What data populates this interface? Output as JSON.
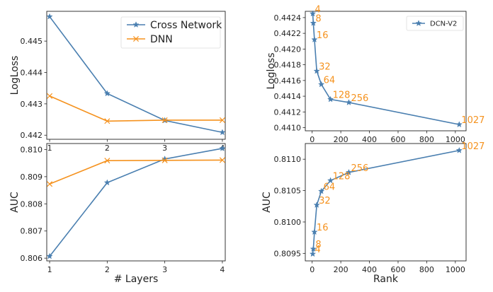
{
  "colors": {
    "blue": "#4a7fb0",
    "orange": "#f5921e"
  },
  "chart_data": [
    {
      "id": "tl",
      "type": "line",
      "x": [
        1,
        2,
        3,
        4
      ],
      "xticks": [
        "1",
        "2",
        "3",
        "4"
      ],
      "xlim": [
        0.95,
        4.05
      ],
      "ylabel": "LogLoss",
      "xlabel": "",
      "ylim": [
        0.44187,
        0.44595
      ],
      "yticks": [
        0.442,
        0.443,
        0.444,
        0.445
      ],
      "ytick_labels": [
        "0.442",
        "0.443",
        "0.444",
        "0.445"
      ],
      "legend": "top-right",
      "series": [
        {
          "name": "Cross Network",
          "color": "blue",
          "marker": "star",
          "values": [
            0.44578,
            0.44333,
            0.44247,
            0.44209
          ]
        },
        {
          "name": "DNN",
          "color": "orange",
          "marker": "x",
          "values": [
            0.44325,
            0.44245,
            0.44248,
            0.44248
          ]
        }
      ]
    },
    {
      "id": "bl",
      "type": "line",
      "x": [
        1,
        2,
        3,
        4
      ],
      "xticks": [
        "1",
        "2",
        "3",
        "4"
      ],
      "xlim": [
        0.95,
        4.05
      ],
      "ylabel": "AUC",
      "xlabel": "# Layers",
      "ylim": [
        0.8059,
        0.81022
      ],
      "yticks": [
        0.806,
        0.807,
        0.808,
        0.809,
        0.81
      ],
      "ytick_labels": [
        "0.806",
        "0.807",
        "0.808",
        "0.809",
        "0.810"
      ],
      "series": [
        {
          "name": "Cross Network",
          "color": "blue",
          "marker": "star",
          "values": [
            0.80607,
            0.80878,
            0.80965,
            0.81004
          ]
        },
        {
          "name": "DNN",
          "color": "orange",
          "marker": "x",
          "values": [
            0.80873,
            0.80959,
            0.8096,
            0.80961
          ]
        }
      ]
    },
    {
      "id": "tr",
      "type": "line",
      "x": [
        4,
        8,
        16,
        32,
        64,
        128,
        256,
        1027
      ],
      "xticks": [
        "0",
        "200",
        "400",
        "600",
        "800",
        "1000"
      ],
      "xtick_values": [
        0,
        200,
        400,
        600,
        800,
        1000
      ],
      "xlim": [
        -48,
        1075
      ],
      "ylabel": "Logloss",
      "xlabel": "",
      "ylim": [
        0.44096,
        0.44248
      ],
      "yticks": [
        0.441,
        0.4412,
        0.4414,
        0.4416,
        0.4418,
        0.442,
        0.4422,
        0.4424
      ],
      "ytick_labels": [
        "0.4410",
        "0.4412",
        "0.4414",
        "0.4416",
        "0.4418",
        "0.4420",
        "0.4422",
        "0.4424"
      ],
      "legend": "top-right",
      "point_labels": [
        "4",
        "8",
        "16",
        "32",
        "64",
        "128",
        "256",
        "1027"
      ],
      "series": [
        {
          "name": "DCN-V2",
          "color": "blue",
          "marker": "star",
          "values": [
            0.44245,
            0.44233,
            0.44212,
            0.44172,
            0.44155,
            0.44136,
            0.44132,
            0.44104
          ]
        }
      ]
    },
    {
      "id": "br",
      "type": "line",
      "x": [
        4,
        8,
        16,
        32,
        64,
        128,
        256,
        1027
      ],
      "xticks": [
        "0",
        "200",
        "400",
        "600",
        "800",
        "1000"
      ],
      "xtick_values": [
        0,
        200,
        400,
        600,
        800,
        1000
      ],
      "xlim": [
        -48,
        1075
      ],
      "ylabel": "AUC",
      "xlabel": "Rank",
      "ylim": [
        0.80938,
        0.81125
      ],
      "yticks": [
        0.8095,
        0.81,
        0.8105,
        0.811
      ],
      "ytick_labels": [
        "0.8095",
        "0.8100",
        "0.8105",
        "0.8110"
      ],
      "point_labels": [
        "4",
        "8",
        "16",
        "32",
        "64",
        "128",
        "256",
        "1027"
      ],
      "series": [
        {
          "name": "DCN-V2",
          "color": "blue",
          "marker": "star",
          "values": [
            0.80949,
            0.80957,
            0.80984,
            0.81027,
            0.81049,
            0.81066,
            0.81079,
            0.81114
          ]
        }
      ]
    }
  ]
}
